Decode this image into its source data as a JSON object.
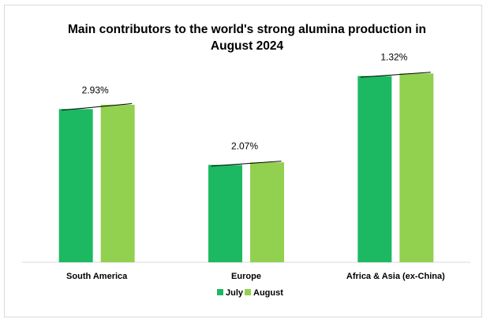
{
  "chart_data": {
    "type": "bar",
    "title_lines": [
      "Main contributors to the world's strong alumina production in",
      "August 2024"
    ],
    "categories": [
      "South America",
      "Europe",
      "Africa & Asia (ex-China)"
    ],
    "series": [
      {
        "name": "July",
        "values": [
          181,
          115,
          220
        ]
      },
      {
        "name": "August",
        "values": [
          186,
          118,
          223
        ]
      }
    ],
    "annotations": [
      "2.93%",
      "2.07%",
      "1.32%"
    ],
    "ylim": [
      0,
      240
    ],
    "legend_position": "bottom",
    "colors": {
      "July": "#1db962",
      "August": "#92d050",
      "trend_line": "#000000",
      "axis": "#d9d9d9"
    }
  }
}
